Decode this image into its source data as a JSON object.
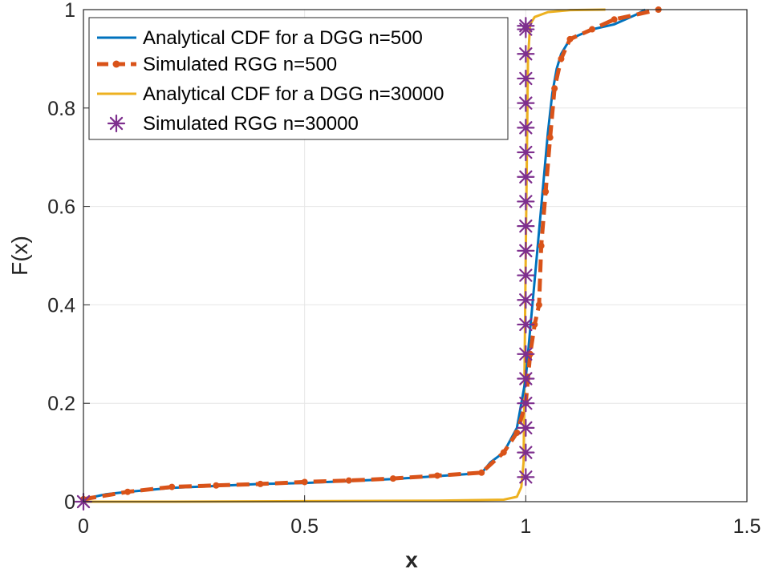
{
  "chart_data": {
    "type": "line",
    "title": "",
    "xlabel": "x",
    "ylabel": "F(x)",
    "xlim": [
      0,
      1.5
    ],
    "ylim": [
      0,
      1
    ],
    "grid": true,
    "legend_position": "top-left",
    "x_ticks": [
      {
        "value": 0,
        "label": "0"
      },
      {
        "value": 0.5,
        "label": "0.5"
      },
      {
        "value": 1,
        "label": "1"
      },
      {
        "value": 1.5,
        "label": "1.5"
      }
    ],
    "y_ticks": [
      {
        "value": 0,
        "label": "0"
      },
      {
        "value": 0.2,
        "label": "0.2"
      },
      {
        "value": 0.4,
        "label": "0.4"
      },
      {
        "value": 0.6,
        "label": "0.6"
      },
      {
        "value": 0.8,
        "label": "0.8"
      },
      {
        "value": 1,
        "label": "1"
      }
    ],
    "series": [
      {
        "name": "Analytical CDF for a DGG n=500",
        "color": "#0072BD",
        "style": "solid",
        "x": [
          0,
          0.05,
          0.1,
          0.2,
          0.3,
          0.4,
          0.5,
          0.6,
          0.7,
          0.8,
          0.9,
          0.92,
          0.95,
          0.98,
          1.0,
          1.01,
          1.02,
          1.03,
          1.04,
          1.05,
          1.06,
          1.07,
          1.08,
          1.1,
          1.15,
          1.2,
          1.25,
          1.27
        ],
        "y": [
          0.005,
          0.015,
          0.02,
          0.028,
          0.032,
          0.036,
          0.038,
          0.042,
          0.046,
          0.052,
          0.058,
          0.08,
          0.1,
          0.15,
          0.25,
          0.35,
          0.45,
          0.55,
          0.65,
          0.75,
          0.83,
          0.88,
          0.91,
          0.94,
          0.96,
          0.97,
          0.99,
          1.0
        ]
      },
      {
        "name": "Simulated RGG n=500",
        "color": "#D95319",
        "style": "dashed-dot-markers",
        "x": [
          0,
          0.1,
          0.2,
          0.3,
          0.4,
          0.5,
          0.6,
          0.7,
          0.8,
          0.9,
          0.95,
          0.98,
          1.0,
          1.01,
          1.02,
          1.03,
          1.035,
          1.045,
          1.055,
          1.065,
          1.08,
          1.1,
          1.15,
          1.2,
          1.3
        ],
        "y": [
          0.005,
          0.02,
          0.03,
          0.033,
          0.036,
          0.04,
          0.043,
          0.047,
          0.053,
          0.059,
          0.1,
          0.14,
          0.2,
          0.3,
          0.36,
          0.4,
          0.52,
          0.63,
          0.74,
          0.84,
          0.9,
          0.94,
          0.96,
          0.98,
          1.0
        ]
      },
      {
        "name": "Analytical CDF for a DGG n=30000",
        "color": "#EDB120",
        "style": "solid",
        "x": [
          0,
          0.2,
          0.5,
          0.8,
          0.95,
          0.98,
          0.99,
          0.995,
          1.0,
          1.005,
          1.01,
          1.02,
          1.05,
          1.1,
          1.18
        ],
        "y": [
          0.0,
          0.0,
          0.001,
          0.002,
          0.004,
          0.01,
          0.03,
          0.08,
          0.5,
          0.9,
          0.97,
          0.985,
          0.995,
          0.999,
          1.0
        ]
      },
      {
        "name": "Simulated RGG n=30000",
        "color": "#7E2F8E",
        "style": "star-markers",
        "x": [
          0,
          1.0,
          1.0,
          1.0,
          1.0,
          1.0,
          1.0,
          1.0,
          1.0,
          1.0,
          1.0,
          1.0,
          1.0,
          1.0,
          1.0,
          1.0,
          1.0,
          1.0,
          1.0,
          1.0,
          1.0
        ],
        "y": [
          0.0,
          0.05,
          0.1,
          0.15,
          0.2,
          0.25,
          0.3,
          0.36,
          0.41,
          0.46,
          0.51,
          0.56,
          0.61,
          0.66,
          0.71,
          0.76,
          0.81,
          0.86,
          0.91,
          0.96,
          0.967
        ]
      }
    ]
  }
}
